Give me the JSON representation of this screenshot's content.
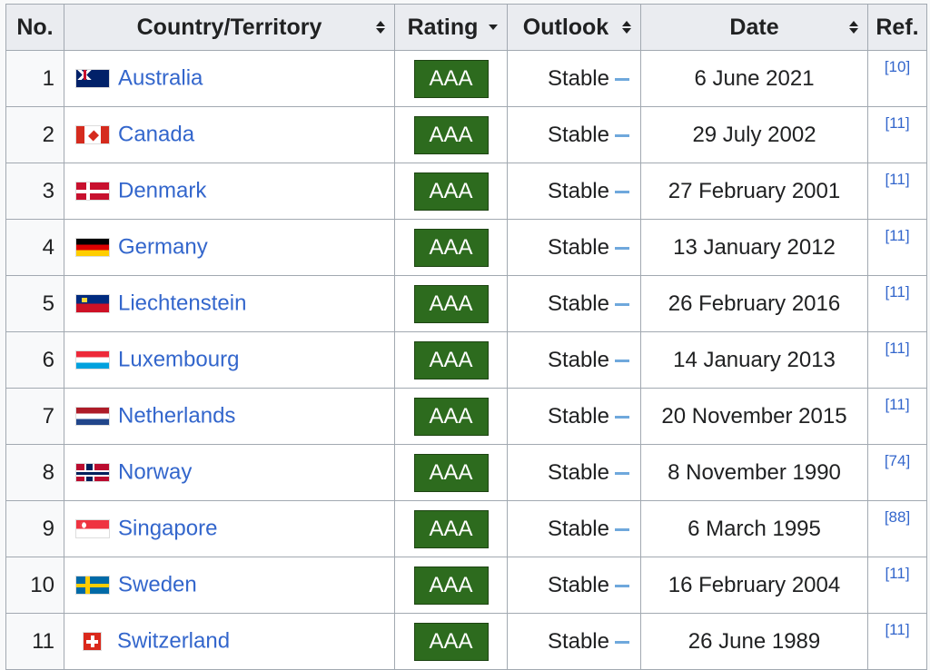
{
  "header": {
    "no": "No.",
    "country": "Country/Territory",
    "rating": "Rating",
    "outlook": "Outlook",
    "date": "Date",
    "ref": "Ref."
  },
  "rows": [
    {
      "no": "1",
      "country": "Australia",
      "flag": "australia-flag-icon",
      "rating": "AAA",
      "outlook": "Stable",
      "date": "6 June 2021",
      "ref": "[10]"
    },
    {
      "no": "2",
      "country": "Canada",
      "flag": "canada-flag-icon",
      "rating": "AAA",
      "outlook": "Stable",
      "date": "29 July 2002",
      "ref": "[11]"
    },
    {
      "no": "3",
      "country": "Denmark",
      "flag": "denmark-flag-icon",
      "rating": "AAA",
      "outlook": "Stable",
      "date": "27 February 2001",
      "ref": "[11]"
    },
    {
      "no": "4",
      "country": "Germany",
      "flag": "germany-flag-icon",
      "rating": "AAA",
      "outlook": "Stable",
      "date": "13 January 2012",
      "ref": "[11]"
    },
    {
      "no": "5",
      "country": "Liechtenstein",
      "flag": "liechtenstein-flag-icon",
      "rating": "AAA",
      "outlook": "Stable",
      "date": "26 February 2016",
      "ref": "[11]"
    },
    {
      "no": "6",
      "country": "Luxembourg",
      "flag": "luxembourg-flag-icon",
      "rating": "AAA",
      "outlook": "Stable",
      "date": "14 January 2013",
      "ref": "[11]"
    },
    {
      "no": "7",
      "country": "Netherlands",
      "flag": "netherlands-flag-icon",
      "rating": "AAA",
      "outlook": "Stable",
      "date": "20 November 2015",
      "ref": "[11]"
    },
    {
      "no": "8",
      "country": "Norway",
      "flag": "norway-flag-icon",
      "rating": "AAA",
      "outlook": "Stable",
      "date": "8 November 1990",
      "ref": "[74]"
    },
    {
      "no": "9",
      "country": "Singapore",
      "flag": "singapore-flag-icon",
      "rating": "AAA",
      "outlook": "Stable",
      "date": "6 March 1995",
      "ref": "[88]"
    },
    {
      "no": "10",
      "country": "Sweden",
      "flag": "sweden-flag-icon",
      "rating": "AAA",
      "outlook": "Stable",
      "date": "16 February 2004",
      "ref": "[11]"
    },
    {
      "no": "11",
      "country": "Switzerland",
      "flag": "switzerland-flag-icon",
      "rating": "AAA",
      "outlook": "Stable",
      "date": "26 June 1989",
      "ref": "[11]"
    }
  ],
  "colors": {
    "rating_badge": "#2d6b1e",
    "link": "#3366cc",
    "outlook_dash": "#6fa8dc",
    "header_bg": "#eaecf0"
  }
}
